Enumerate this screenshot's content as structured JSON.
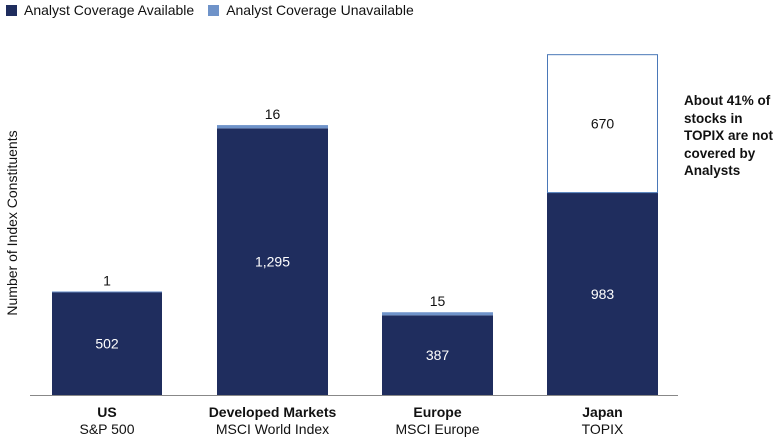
{
  "chart_data": {
    "type": "bar",
    "stacked": true,
    "ylabel": "Number of Index Constituents",
    "ylim": [
      0,
      1700
    ],
    "grid": false,
    "legend_position": "top-left",
    "categories": [
      {
        "name": "US",
        "sub": "S&P 500"
      },
      {
        "name": "Developed Markets",
        "sub": "MSCI World Index"
      },
      {
        "name": "Europe",
        "sub": "MSCI Europe"
      },
      {
        "name": "Japan",
        "sub": "TOPIX"
      }
    ],
    "series": [
      {
        "name": "Analyst Coverage Available",
        "values": [
          502,
          1295,
          387,
          983
        ],
        "labels": [
          "502",
          "1,295",
          "387",
          "983"
        ],
        "color": "#1f2d5e"
      },
      {
        "name": "Analyst Coverage Unavailable",
        "values": [
          1,
          16,
          15,
          670
        ],
        "labels": [
          "1",
          "16",
          "15",
          "670"
        ],
        "color": "#6f93c9"
      }
    ],
    "annotation": "About 41% of stocks in TOPIX are not covered by Analysts"
  }
}
